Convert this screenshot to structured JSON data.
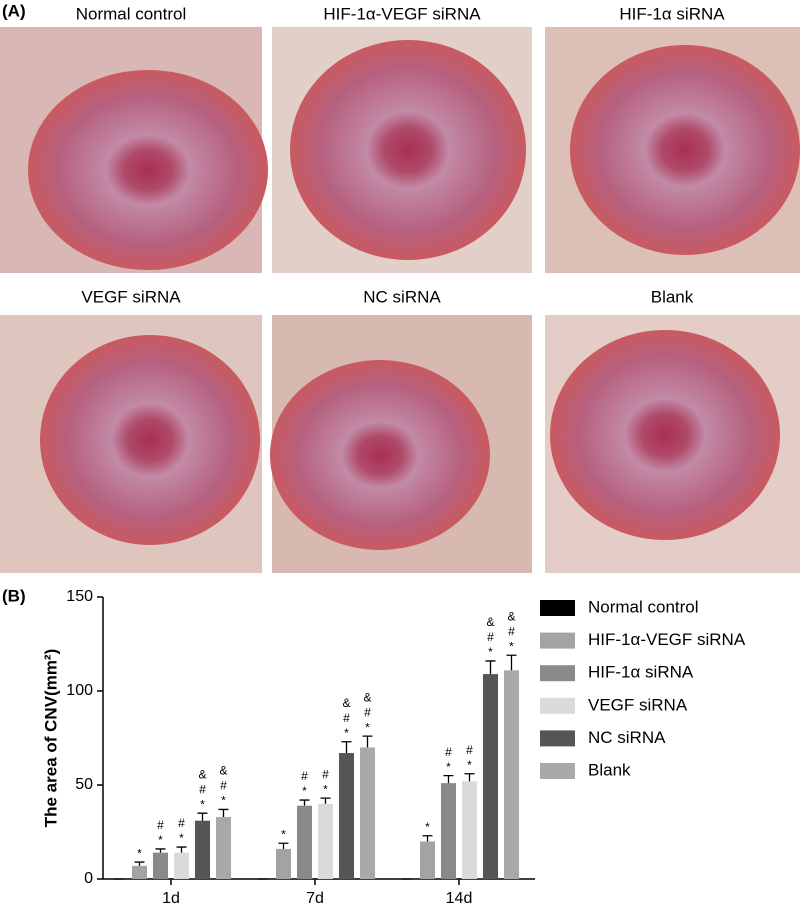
{
  "panel_a": {
    "label": "(A)",
    "captions": [
      "Normal control",
      "HIF-1α-VEGF siRNA",
      "HIF-1α siRNA",
      "VEGF siRNA",
      "NC siRNA",
      "Blank"
    ]
  },
  "panel_b": {
    "label": "(B)"
  },
  "chart_data": {
    "type": "bar",
    "y_label": "The area of CNV(mm²)",
    "categories": [
      "1d",
      "7d",
      "14d"
    ],
    "ylim": [
      0,
      150
    ],
    "yticks": [
      0,
      50,
      100,
      150
    ],
    "legend": "right",
    "series": [
      {
        "name": "Normal control",
        "color": "#000000",
        "values": [
          0,
          0,
          0
        ],
        "errors": [
          0,
          0,
          0
        ]
      },
      {
        "name": "HIF-1α-VEGF siRNA",
        "color": "#a3a3a3",
        "values": [
          7,
          16,
          20
        ],
        "errors": [
          2,
          3,
          3
        ],
        "markers": [
          [
            "*"
          ],
          [
            "*"
          ],
          [
            "*"
          ]
        ]
      },
      {
        "name": "HIF-1α siRNA",
        "color": "#8a8a8a",
        "values": [
          14,
          39,
          51
        ],
        "errors": [
          2,
          3,
          4
        ],
        "markers": [
          [
            "*",
            "#"
          ],
          [
            "*",
            "#"
          ],
          [
            "*",
            "#"
          ]
        ]
      },
      {
        "name": "VEGF siRNA",
        "color": "#dadada",
        "values": [
          14,
          40,
          52
        ],
        "errors": [
          3,
          3,
          4
        ],
        "markers": [
          [
            "*",
            "#"
          ],
          [
            "*",
            "#"
          ],
          [
            "*",
            "#"
          ]
        ]
      },
      {
        "name": "NC siRNA",
        "color": "#555555",
        "values": [
          31,
          67,
          109
        ],
        "errors": [
          4,
          6,
          7
        ],
        "markers": [
          [
            "*",
            "#",
            "&"
          ],
          [
            "*",
            "#",
            "&"
          ],
          [
            "*",
            "#",
            "&"
          ]
        ]
      },
      {
        "name": "Blank",
        "color": "#a9a9a9",
        "values": [
          33,
          70,
          111
        ],
        "errors": [
          4,
          6,
          8
        ],
        "markers": [
          [
            "*",
            "#",
            "&"
          ],
          [
            "*",
            "#",
            "&"
          ],
          [
            "*",
            "#",
            "&"
          ]
        ]
      }
    ]
  }
}
